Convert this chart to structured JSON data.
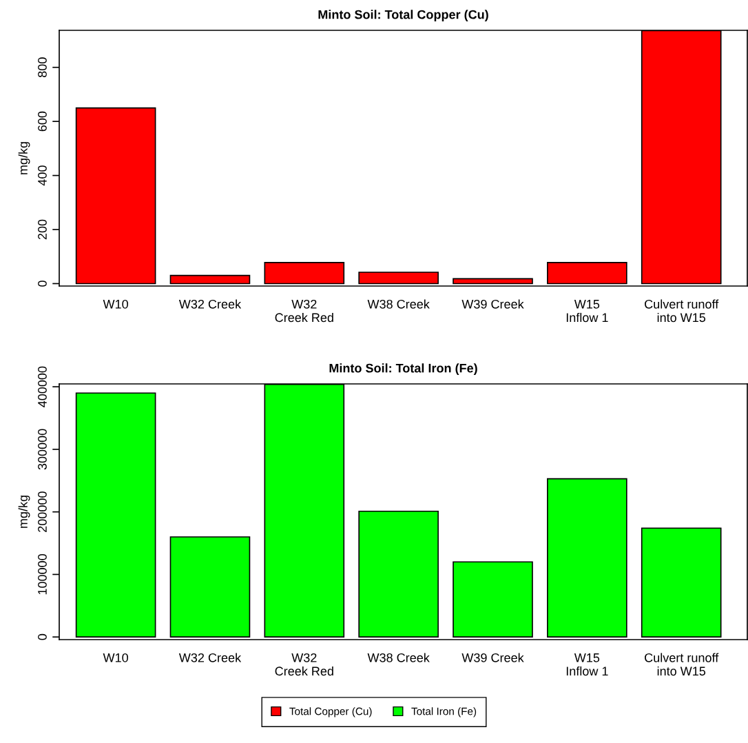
{
  "chart_data": [
    {
      "type": "bar",
      "title": "Minto Soil: Total Copper (Cu)",
      "ylabel": "mg/kg",
      "categories": [
        "W10",
        "W32 Creek",
        "W32\nCreek Red",
        "W38 Creek",
        "W39 Creek",
        "W15\nInflow 1",
        "Culvert runoff\ninto W15"
      ],
      "series": [
        {
          "name": "Total Copper (Cu)",
          "color": "#ff0000",
          "values": [
            650,
            30,
            78,
            42,
            18,
            78,
            936
          ]
        }
      ],
      "ylim": [
        -9,
        937
      ],
      "yticks": [
        0,
        200,
        400,
        600,
        800
      ],
      "grid": false,
      "legend": "bottom"
    },
    {
      "type": "bar",
      "title": "Minto Soil: Total Iron (Fe)",
      "ylabel": "mg/kg",
      "categories": [
        "W10",
        "W32 Creek",
        "W32\nCreek Red",
        "W38 Creek",
        "W39 Creek",
        "W15\nInflow 1",
        "Culvert runoff\ninto W15"
      ],
      "series": [
        {
          "name": "Total Iron (Fe)",
          "color": "#00ff00",
          "values": [
            390000,
            160000,
            404000,
            201000,
            120000,
            253000,
            174000
          ]
        }
      ],
      "ylim": [
        -4200,
        404600
      ],
      "yticks": [
        0,
        100000,
        200000,
        300000,
        400000
      ],
      "grid": false,
      "legend": "bottom"
    }
  ]
}
